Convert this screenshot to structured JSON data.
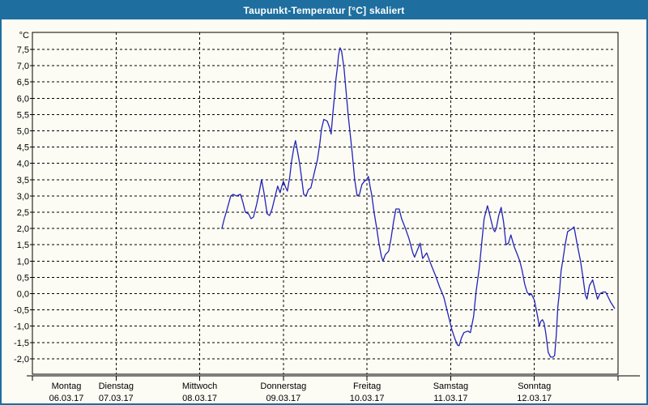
{
  "window": {
    "title": "Taupunkt-Temperatur [°C] skaliert"
  },
  "colors": {
    "titlebar": "#1e6f9f",
    "window_border": "#1e6f9f",
    "background": "#fcfcf4",
    "grid": "#000000",
    "line": "#2222bb"
  },
  "chart_data": {
    "type": "line",
    "title": "Taupunkt-Temperatur [°C] skaliert",
    "ylabel": "°C",
    "ylim": [
      -2.0,
      7.5
    ],
    "ytick_step": 0.5,
    "ytick_labels": [
      "7,5",
      "7,0",
      "6,5",
      "6,0",
      "5,5",
      "5,0",
      "4,5",
      "4,0",
      "3,5",
      "3,0",
      "2,5",
      "2,0",
      "1,5",
      "1,0",
      "0,5",
      "0,0",
      "-0,5",
      "-1,0",
      "-1,5",
      "-2,0"
    ],
    "grid": "dashed, horizontal every 0.5 °C and vertical at day boundaries",
    "legend": "none",
    "x_unit": "days since Montag 06.03.17 00:00",
    "xlim": [
      0,
      7
    ],
    "days": [
      {
        "name": "Montag",
        "date": "06.03.17"
      },
      {
        "name": "Dienstag",
        "date": "07.03.17"
      },
      {
        "name": "Mittwoch",
        "date": "08.03.17"
      },
      {
        "name": "Donnerstag",
        "date": "09.03.17"
      },
      {
        "name": "Freitag",
        "date": "10.03.17"
      },
      {
        "name": "Samstag",
        "date": "11.03.17"
      },
      {
        "name": "Sonntag",
        "date": "12.03.17"
      }
    ],
    "series": [
      {
        "name": "Taupunkt-Temperatur",
        "color": "#2222bb",
        "points": [
          [
            2.265,
            2.0
          ],
          [
            2.294,
            2.3
          ],
          [
            2.323,
            2.55
          ],
          [
            2.371,
            3.0
          ],
          [
            2.4,
            3.05
          ],
          [
            2.439,
            3.0
          ],
          [
            2.487,
            3.05
          ],
          [
            2.516,
            2.8
          ],
          [
            2.545,
            2.5
          ],
          [
            2.584,
            2.45
          ],
          [
            2.613,
            2.3
          ],
          [
            2.642,
            2.35
          ],
          [
            2.681,
            2.75
          ],
          [
            2.71,
            3.1
          ],
          [
            2.739,
            3.5
          ],
          [
            2.768,
            3.1
          ],
          [
            2.806,
            2.45
          ],
          [
            2.835,
            2.4
          ],
          [
            2.865,
            2.6
          ],
          [
            2.903,
            3.0
          ],
          [
            2.932,
            3.3
          ],
          [
            2.961,
            3.1
          ],
          [
            2.981,
            3.3
          ],
          [
            3.0,
            3.45
          ],
          [
            3.029,
            3.25
          ],
          [
            3.048,
            3.15
          ],
          [
            3.077,
            3.6
          ],
          [
            3.097,
            4.05
          ],
          [
            3.126,
            4.5
          ],
          [
            3.145,
            4.7
          ],
          [
            3.174,
            4.3
          ],
          [
            3.194,
            4.0
          ],
          [
            3.223,
            3.45
          ],
          [
            3.242,
            3.05
          ],
          [
            3.271,
            3.0
          ],
          [
            3.3,
            3.2
          ],
          [
            3.329,
            3.25
          ],
          [
            3.368,
            3.7
          ],
          [
            3.406,
            4.1
          ],
          [
            3.435,
            4.6
          ],
          [
            3.455,
            5.05
          ],
          [
            3.484,
            5.35
          ],
          [
            3.523,
            5.3
          ],
          [
            3.552,
            5.1
          ],
          [
            3.571,
            4.9
          ],
          [
            3.59,
            5.5
          ],
          [
            3.61,
            6.05
          ],
          [
            3.629,
            6.6
          ],
          [
            3.648,
            7.0
          ],
          [
            3.658,
            7.3
          ],
          [
            3.677,
            7.55
          ],
          [
            3.696,
            7.45
          ],
          [
            3.726,
            6.9
          ],
          [
            3.774,
            5.5
          ],
          [
            3.823,
            4.3
          ],
          [
            3.852,
            3.5
          ],
          [
            3.881,
            3.0
          ],
          [
            3.91,
            3.05
          ],
          [
            3.939,
            3.35
          ],
          [
            3.968,
            3.45
          ],
          [
            3.997,
            3.5
          ],
          [
            4.016,
            3.6
          ],
          [
            4.035,
            3.3
          ],
          [
            4.055,
            3.05
          ],
          [
            4.084,
            2.5
          ],
          [
            4.113,
            2.05
          ],
          [
            4.142,
            1.55
          ],
          [
            4.171,
            1.15
          ],
          [
            4.19,
            1.0
          ],
          [
            4.219,
            1.2
          ],
          [
            4.258,
            1.3
          ],
          [
            4.287,
            1.7
          ],
          [
            4.316,
            2.2
          ],
          [
            4.345,
            2.6
          ],
          [
            4.384,
            2.6
          ],
          [
            4.413,
            2.3
          ],
          [
            4.452,
            2.05
          ],
          [
            4.5,
            1.7
          ],
          [
            4.548,
            1.25
          ],
          [
            4.568,
            1.12
          ],
          [
            4.635,
            1.55
          ],
          [
            4.665,
            1.08
          ],
          [
            4.713,
            1.25
          ],
          [
            4.742,
            1.05
          ],
          [
            4.771,
            0.85
          ],
          [
            4.819,
            0.55
          ],
          [
            4.868,
            0.2
          ],
          [
            4.916,
            -0.1
          ],
          [
            4.955,
            -0.5
          ],
          [
            4.994,
            -0.9
          ],
          [
            5.013,
            -1.1
          ],
          [
            5.052,
            -1.4
          ],
          [
            5.081,
            -1.58
          ],
          [
            5.1,
            -1.6
          ],
          [
            5.129,
            -1.35
          ],
          [
            5.158,
            -1.2
          ],
          [
            5.206,
            -1.15
          ],
          [
            5.235,
            -1.2
          ],
          [
            5.274,
            -0.7
          ],
          [
            5.303,
            0.05
          ],
          [
            5.342,
            0.8
          ],
          [
            5.371,
            1.55
          ],
          [
            5.4,
            2.3
          ],
          [
            5.439,
            2.7
          ],
          [
            5.468,
            2.4
          ],
          [
            5.506,
            2.0
          ],
          [
            5.526,
            1.9
          ],
          [
            5.545,
            2.0
          ],
          [
            5.574,
            2.4
          ],
          [
            5.603,
            2.65
          ],
          [
            5.632,
            2.2
          ],
          [
            5.661,
            1.5
          ],
          [
            5.69,
            1.55
          ],
          [
            5.719,
            1.8
          ],
          [
            5.758,
            1.45
          ],
          [
            5.797,
            1.2
          ],
          [
            5.826,
            1.0
          ],
          [
            5.855,
            0.7
          ],
          [
            5.884,
            0.3
          ],
          [
            5.913,
            0.05
          ],
          [
            5.942,
            -0.05
          ],
          [
            5.961,
            0.0
          ],
          [
            5.981,
            -0.1
          ],
          [
            6.0,
            -0.2
          ],
          [
            6.019,
            -0.45
          ],
          [
            6.039,
            -0.7
          ],
          [
            6.058,
            -1.0
          ],
          [
            6.077,
            -0.85
          ],
          [
            6.097,
            -0.8
          ],
          [
            6.116,
            -0.9
          ],
          [
            6.135,
            -1.2
          ],
          [
            6.165,
            -1.8
          ],
          [
            6.194,
            -1.95
          ],
          [
            6.223,
            -1.95
          ],
          [
            6.242,
            -1.9
          ],
          [
            6.261,
            -1.3
          ],
          [
            6.281,
            -0.4
          ],
          [
            6.3,
            0.05
          ],
          [
            6.319,
            0.7
          ],
          [
            6.339,
            1.0
          ],
          [
            6.368,
            1.5
          ],
          [
            6.397,
            1.9
          ],
          [
            6.426,
            1.95
          ],
          [
            6.455,
            2.0
          ],
          [
            6.474,
            2.05
          ],
          [
            6.513,
            1.5
          ],
          [
            6.552,
            1.0
          ],
          [
            6.581,
            0.5
          ],
          [
            6.61,
            -0.05
          ],
          [
            6.629,
            -0.17
          ],
          [
            6.658,
            0.25
          ],
          [
            6.697,
            0.42
          ],
          [
            6.726,
            0.12
          ],
          [
            6.755,
            -0.17
          ],
          [
            6.784,
            0.0
          ],
          [
            6.823,
            0.05
          ],
          [
            6.852,
            0.05
          ],
          [
            6.881,
            -0.1
          ],
          [
            6.91,
            -0.25
          ],
          [
            6.939,
            -0.37
          ],
          [
            6.958,
            -0.45
          ]
        ]
      }
    ]
  }
}
